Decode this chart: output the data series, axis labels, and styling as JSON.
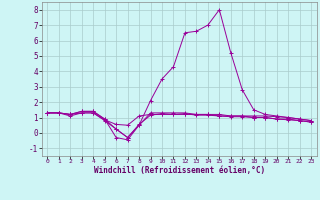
{
  "xlabel": "Windchill (Refroidissement éolien,°C)",
  "background_color": "#cef5f5",
  "grid_color": "#aacccc",
  "line_color": "#990099",
  "xlim": [
    -0.5,
    23.5
  ],
  "ylim": [
    -1.5,
    8.5
  ],
  "yticks": [
    -1,
    0,
    1,
    2,
    3,
    4,
    5,
    6,
    7,
    8
  ],
  "xticks": [
    0,
    1,
    2,
    3,
    4,
    5,
    6,
    7,
    8,
    9,
    10,
    11,
    12,
    13,
    14,
    15,
    16,
    17,
    18,
    19,
    20,
    21,
    22,
    23
  ],
  "series": [
    [
      1.3,
      1.3,
      1.2,
      1.3,
      1.3,
      0.85,
      0.55,
      0.5,
      1.1,
      1.2,
      1.2,
      1.2,
      1.2,
      1.2,
      1.2,
      1.2,
      1.1,
      1.1,
      1.1,
      1.1,
      1.05,
      1.0,
      0.9,
      0.8
    ],
    [
      1.3,
      1.3,
      1.1,
      1.3,
      1.3,
      0.8,
      0.25,
      -0.3,
      0.55,
      1.15,
      1.25,
      1.2,
      1.25,
      1.15,
      1.15,
      1.1,
      1.05,
      1.05,
      1.0,
      1.0,
      0.9,
      0.85,
      0.8,
      0.7
    ],
    [
      1.3,
      1.3,
      1.2,
      1.4,
      1.4,
      0.9,
      -0.3,
      -0.45,
      0.5,
      2.1,
      3.5,
      4.3,
      6.5,
      6.6,
      7.0,
      8.0,
      5.2,
      2.8,
      1.5,
      1.2,
      1.1,
      1.0,
      0.9,
      0.8
    ],
    [
      1.3,
      1.3,
      1.2,
      1.4,
      1.4,
      0.9,
      0.25,
      -0.3,
      0.5,
      1.3,
      1.3,
      1.3,
      1.3,
      1.2,
      1.2,
      1.1,
      1.1,
      1.1,
      1.0,
      1.0,
      0.9,
      0.9,
      0.8,
      0.7
    ]
  ]
}
